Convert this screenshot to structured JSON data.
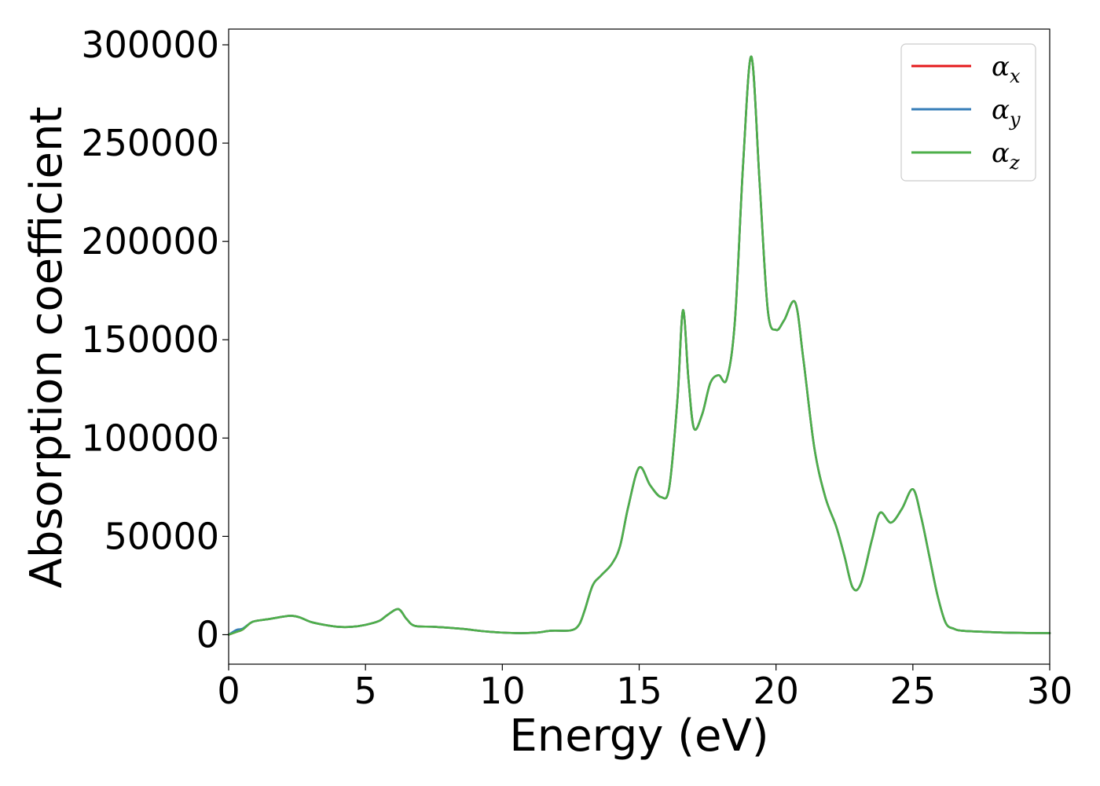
{
  "chart_data": {
    "type": "line",
    "xlabel": "Energy (eV)",
    "ylabel": "Absorption coefficient",
    "xlim": [
      0,
      30
    ],
    "ylim": [
      -15000,
      308000
    ],
    "x_ticks": [
      0,
      5,
      10,
      15,
      20,
      25,
      30
    ],
    "y_ticks": [
      0,
      50000,
      100000,
      150000,
      200000,
      250000,
      300000
    ],
    "legend_position": "upper right",
    "grid": false,
    "series": [
      {
        "name": "α_x",
        "legend_base": "α",
        "legend_sub": "x",
        "color": "#e41a1c",
        "x": [
          0,
          0.3,
          0.5,
          0.8,
          1.0,
          1.5,
          2.0,
          2.3,
          2.6,
          3.0,
          3.5,
          4.0,
          4.5,
          5.0,
          5.5,
          5.8,
          6.2,
          6.5,
          6.8,
          7.5,
          8.5,
          9.5,
          10.5,
          11.2,
          11.8,
          12.5,
          12.8,
          13.0,
          13.3,
          13.6,
          14.0,
          14.3,
          14.6,
          15.0,
          15.4,
          15.8,
          16.1,
          16.4,
          16.6,
          16.8,
          17.0,
          17.3,
          17.6,
          17.9,
          18.2,
          18.5,
          18.8,
          19.1,
          19.4,
          19.7,
          20.0,
          20.3,
          20.7,
          21.0,
          21.4,
          21.8,
          22.2,
          22.5,
          22.8,
          23.1,
          23.5,
          23.8,
          24.2,
          24.6,
          25.0,
          25.3,
          25.6,
          25.9,
          26.2,
          26.5,
          26.8,
          27.5,
          28.5,
          30
        ],
        "values": [
          0,
          1500,
          2500,
          6000,
          7000,
          8000,
          9200,
          9600,
          8800,
          6500,
          5000,
          4000,
          4000,
          5000,
          7000,
          10000,
          13000,
          8000,
          4500,
          4000,
          3000,
          1500,
          800,
          1000,
          2000,
          2200,
          5000,
          12000,
          25000,
          30000,
          36000,
          45000,
          65000,
          85000,
          76000,
          70000,
          75000,
          120000,
          165000,
          130000,
          105000,
          112000,
          128000,
          132000,
          130000,
          160000,
          240000,
          294000,
          230000,
          165000,
          155000,
          160000,
          169000,
          140000,
          95000,
          70000,
          55000,
          40000,
          24000,
          26000,
          48000,
          62000,
          57000,
          64000,
          74000,
          60000,
          40000,
          20000,
          6000,
          3000,
          2000,
          1500,
          1000,
          800
        ]
      },
      {
        "name": "α_y",
        "legend_base": "α",
        "legend_sub": "y",
        "color": "#377eb8",
        "x": [
          0,
          0.3,
          0.5,
          0.8,
          1.0,
          1.5,
          2.0,
          2.3,
          2.6,
          3.0,
          3.5,
          4.0,
          4.5,
          5.0,
          5.5,
          5.8,
          6.2,
          6.5,
          6.8,
          7.5,
          8.5,
          9.5,
          10.5,
          11.2,
          11.8,
          12.5,
          12.8,
          13.0,
          13.3,
          13.6,
          14.0,
          14.3,
          14.6,
          15.0,
          15.4,
          15.8,
          16.1,
          16.4,
          16.6,
          16.8,
          17.0,
          17.3,
          17.6,
          17.9,
          18.2,
          18.5,
          18.8,
          19.1,
          19.4,
          19.7,
          20.0,
          20.3,
          20.7,
          21.0,
          21.4,
          21.8,
          22.2,
          22.5,
          22.8,
          23.1,
          23.5,
          23.8,
          24.2,
          24.6,
          25.0,
          25.3,
          25.6,
          25.9,
          26.2,
          26.5,
          26.8,
          27.5,
          28.5,
          30
        ],
        "values": [
          0,
          2500,
          3000,
          6000,
          7000,
          8000,
          9200,
          9600,
          8800,
          6500,
          5000,
          4000,
          4000,
          5000,
          7000,
          10000,
          13000,
          8000,
          4500,
          4000,
          3000,
          1500,
          800,
          1000,
          2000,
          2200,
          5000,
          12000,
          25000,
          30000,
          36000,
          45000,
          65000,
          85000,
          76000,
          70000,
          75000,
          120000,
          165000,
          130000,
          105000,
          112000,
          128000,
          132000,
          130000,
          160000,
          240000,
          294000,
          230000,
          165000,
          155000,
          160000,
          169000,
          140000,
          95000,
          70000,
          55000,
          40000,
          24000,
          26000,
          48000,
          62000,
          57000,
          64000,
          74000,
          60000,
          40000,
          20000,
          6000,
          3000,
          2000,
          1500,
          1000,
          800
        ]
      },
      {
        "name": "α_z",
        "legend_base": "α",
        "legend_sub": "z",
        "color": "#4daf4a",
        "x": [
          0,
          0.3,
          0.5,
          0.8,
          1.0,
          1.5,
          2.0,
          2.3,
          2.6,
          3.0,
          3.5,
          4.0,
          4.5,
          5.0,
          5.5,
          5.8,
          6.2,
          6.5,
          6.8,
          7.5,
          8.5,
          9.5,
          10.5,
          11.2,
          11.8,
          12.5,
          12.8,
          13.0,
          13.3,
          13.6,
          14.0,
          14.3,
          14.6,
          15.0,
          15.4,
          15.8,
          16.1,
          16.4,
          16.6,
          16.8,
          17.0,
          17.3,
          17.6,
          17.9,
          18.2,
          18.5,
          18.8,
          19.1,
          19.4,
          19.7,
          20.0,
          20.3,
          20.7,
          21.0,
          21.4,
          21.8,
          22.2,
          22.5,
          22.8,
          23.1,
          23.5,
          23.8,
          24.2,
          24.6,
          25.0,
          25.3,
          25.6,
          25.9,
          26.2,
          26.5,
          26.8,
          27.5,
          28.5,
          30
        ],
        "values": [
          0,
          1500,
          2500,
          6000,
          7000,
          8000,
          9200,
          9600,
          8800,
          6500,
          5000,
          4000,
          4000,
          5000,
          7000,
          10000,
          13000,
          8000,
          4500,
          4000,
          3000,
          1500,
          800,
          1000,
          2000,
          2200,
          5000,
          12000,
          25000,
          30000,
          36000,
          45000,
          65000,
          85000,
          76000,
          70000,
          75000,
          120000,
          165000,
          130000,
          105000,
          112000,
          128000,
          132000,
          130000,
          160000,
          240000,
          294000,
          230000,
          165000,
          155000,
          160000,
          169000,
          140000,
          95000,
          70000,
          55000,
          40000,
          24000,
          26000,
          48000,
          62000,
          57000,
          64000,
          74000,
          60000,
          40000,
          20000,
          6000,
          3000,
          2000,
          1500,
          1000,
          800
        ]
      }
    ]
  }
}
